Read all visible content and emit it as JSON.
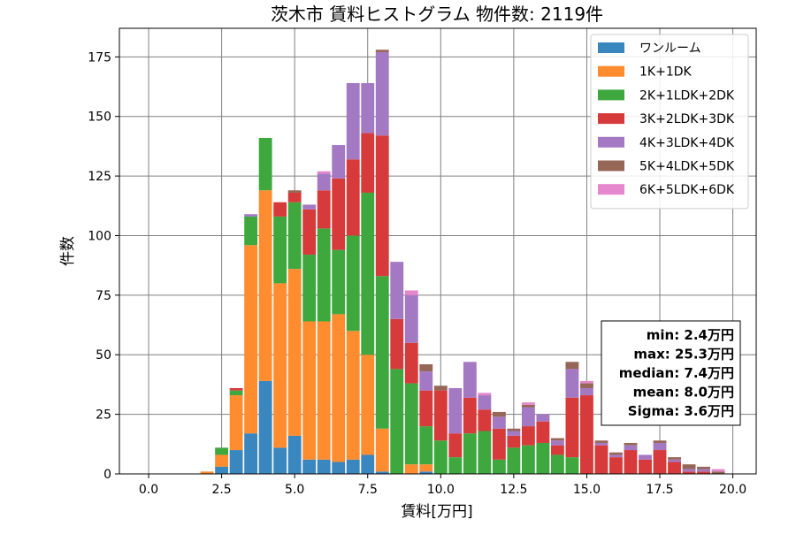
{
  "chart_data": {
    "type": "bar",
    "stacked": true,
    "title": "茨木市 賃料ヒストグラム 物件数: 2119件",
    "xlabel": "賃料[万円]",
    "ylabel": "件数",
    "xlim": [
      -1.0,
      20.8
    ],
    "ylim": [
      0,
      187
    ],
    "xticks": [
      0.0,
      2.5,
      5.0,
      7.5,
      10.0,
      12.5,
      15.0,
      17.5,
      20.0
    ],
    "xtick_labels": [
      "0.0",
      "2.5",
      "5.0",
      "7.5",
      "10.0",
      "12.5",
      "15.0",
      "17.5",
      "20.0"
    ],
    "yticks": [
      0,
      25,
      50,
      75,
      100,
      125,
      150,
      175
    ],
    "ytick_labels": [
      "0",
      "25",
      "50",
      "75",
      "100",
      "125",
      "150",
      "175"
    ],
    "grid": true,
    "legend_position": "top-right",
    "bin_width": 0.5,
    "bar_width": 0.45,
    "x": [
      2.0,
      2.5,
      3.0,
      3.5,
      4.0,
      4.5,
      5.0,
      5.5,
      6.0,
      6.5,
      7.0,
      7.5,
      8.0,
      8.5,
      9.0,
      9.5,
      10.0,
      10.5,
      11.0,
      11.5,
      12.0,
      12.5,
      13.0,
      13.5,
      14.0,
      14.5,
      15.0,
      15.5,
      16.0,
      16.5,
      17.0,
      17.5,
      18.0,
      18.5,
      19.0,
      19.5
    ],
    "series": [
      {
        "name": "ワンルーム",
        "color": "#3a86bf",
        "values": [
          0,
          3,
          10,
          17,
          39,
          11,
          16,
          6,
          6,
          5,
          6,
          8,
          1,
          0,
          0,
          1,
          0,
          0,
          0,
          0,
          0,
          0,
          0,
          0,
          0,
          0,
          0,
          0,
          0,
          0,
          0,
          0,
          0,
          0,
          0,
          0
        ]
      },
      {
        "name": "1K+1DK",
        "color": "#ff8c2e",
        "values": [
          1,
          5,
          23,
          79,
          80,
          69,
          70,
          58,
          58,
          62,
          54,
          42,
          18,
          0,
          4,
          3,
          0,
          0,
          0,
          0,
          0,
          0,
          0,
          0,
          0,
          0,
          0,
          0,
          0,
          0,
          0,
          0,
          0,
          0,
          0,
          0
        ]
      },
      {
        "name": "2K+1LDK+2DK",
        "color": "#3ea83e",
        "values": [
          0,
          3,
          2,
          12,
          22,
          28,
          28,
          28,
          39,
          27,
          40,
          68,
          64,
          44,
          34,
          16,
          14,
          7,
          17,
          18,
          6,
          11,
          12,
          13,
          8,
          7,
          0,
          0,
          0,
          0,
          0,
          0,
          0,
          0,
          0,
          0
        ]
      },
      {
        "name": "3K+2LDK+3DK",
        "color": "#d63a3a",
        "values": [
          0,
          0,
          1,
          0,
          0,
          6,
          4,
          19,
          16,
          30,
          32,
          25,
          59,
          21,
          17,
          15,
          21,
          10,
          15,
          9,
          13,
          5,
          8,
          9,
          4,
          25,
          33,
          12,
          7,
          10,
          6,
          10,
          5,
          1,
          1,
          0
        ]
      },
      {
        "name": "4K+3LDK+4DK",
        "color": "#a479c4",
        "values": [
          0,
          0,
          0,
          1,
          0,
          0,
          0,
          2,
          7,
          14,
          32,
          21,
          35,
          24,
          20,
          8,
          0,
          19,
          15,
          6,
          5,
          2,
          8,
          3,
          2,
          12,
          3,
          1,
          1,
          2,
          2,
          3,
          1,
          1,
          1,
          0
        ]
      },
      {
        "name": "5K+4LDK+5DK",
        "color": "#966656",
        "values": [
          0,
          0,
          0,
          0,
          0,
          0,
          1,
          0,
          0,
          0,
          0,
          0,
          1,
          0,
          0,
          3,
          2,
          0,
          0,
          0,
          2,
          1,
          1,
          0,
          1,
          3,
          2,
          1,
          1,
          1,
          0,
          1,
          1,
          2,
          1,
          1
        ]
      },
      {
        "name": "6K+5LDK+6DK",
        "color": "#e587cc",
        "values": [
          0,
          0,
          0,
          0,
          0,
          0,
          0,
          0,
          1,
          0,
          0,
          0,
          0,
          0,
          2,
          0,
          0,
          0,
          0,
          1,
          0,
          0,
          1,
          0,
          0,
          0,
          1,
          0,
          0,
          0,
          0,
          0,
          0,
          0,
          0,
          1
        ]
      }
    ],
    "stats": [
      "min: 2.4万円",
      "max: 25.3万円",
      "median: 7.4万円",
      "mean: 8.0万円",
      "Sigma: 3.6万円"
    ]
  }
}
